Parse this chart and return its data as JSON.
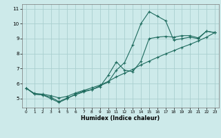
{
  "xlabel": "Humidex (Indice chaleur)",
  "bg_color": "#cdeaea",
  "line_color": "#1e6b5e",
  "grid_color": "#aacfcf",
  "xlim": [
    -0.5,
    23.5
  ],
  "ylim": [
    4.4,
    11.3
  ],
  "xticks": [
    0,
    1,
    2,
    3,
    4,
    5,
    6,
    7,
    8,
    9,
    10,
    11,
    12,
    13,
    14,
    15,
    16,
    17,
    18,
    19,
    20,
    21,
    22,
    23
  ],
  "yticks": [
    5,
    6,
    7,
    8,
    9,
    10,
    11
  ],
  "line1_x": [
    0,
    1,
    2,
    3,
    4,
    5,
    6,
    7,
    8,
    9,
    10,
    11,
    12,
    13,
    14,
    15,
    16,
    17,
    18,
    19,
    20,
    21,
    22,
    23
  ],
  "line1_y": [
    5.7,
    5.3,
    5.25,
    5.0,
    4.75,
    5.0,
    5.3,
    5.5,
    5.6,
    5.85,
    6.1,
    6.9,
    7.4,
    8.6,
    10.0,
    10.8,
    10.5,
    10.2,
    8.9,
    9.0,
    9.1,
    9.0,
    9.5,
    9.4
  ],
  "line2_x": [
    0,
    1,
    2,
    3,
    4,
    5,
    6,
    7,
    8,
    9,
    10,
    11,
    12,
    13,
    14,
    15,
    16,
    17,
    18,
    19,
    20,
    21,
    22,
    23
  ],
  "line2_y": [
    5.7,
    5.3,
    5.25,
    5.1,
    4.8,
    5.05,
    5.25,
    5.45,
    5.6,
    5.8,
    6.55,
    7.45,
    6.9,
    6.8,
    7.5,
    9.0,
    9.1,
    9.15,
    9.1,
    9.2,
    9.2,
    9.05,
    9.5,
    9.4
  ],
  "line3_x": [
    0,
    1,
    2,
    3,
    4,
    5,
    6,
    7,
    8,
    9,
    10,
    11,
    12,
    13,
    14,
    15,
    16,
    17,
    18,
    19,
    20,
    21,
    22,
    23
  ],
  "line3_y": [
    5.7,
    5.35,
    5.3,
    5.2,
    5.05,
    5.15,
    5.38,
    5.55,
    5.72,
    5.9,
    6.15,
    6.45,
    6.7,
    6.95,
    7.25,
    7.5,
    7.75,
    7.98,
    8.2,
    8.42,
    8.62,
    8.85,
    9.1,
    9.4
  ]
}
